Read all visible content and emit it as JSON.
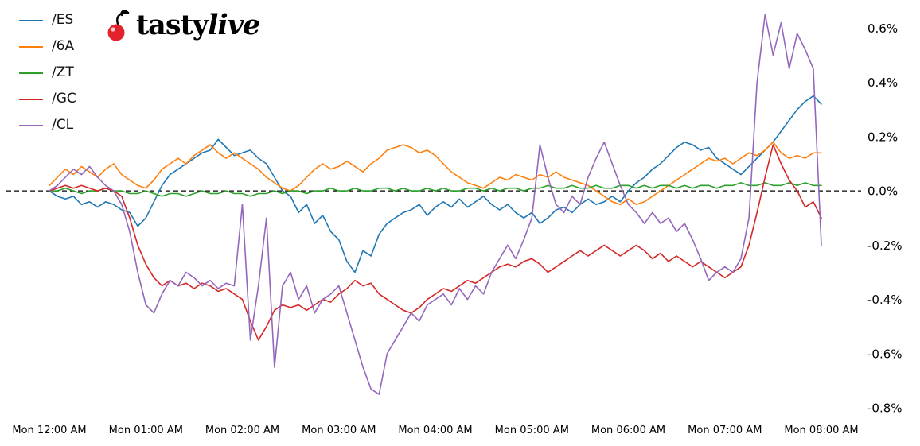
{
  "logo": {
    "brand_part1": "tasty",
    "brand_part2": "live",
    "cherry_color": "#e3232c"
  },
  "chart_data": {
    "type": "line",
    "title": "",
    "xlabel": "",
    "ylabel": "",
    "grid": false,
    "legend_position": "upper-left",
    "zero_line": {
      "value": 0.0,
      "style": "dashed",
      "color": "#000000"
    },
    "x_axis": {
      "unit": "minutes-since-Mon-12:00-AM",
      "start_min": 0,
      "step_min": 5,
      "tick_positions_min": [
        0,
        60,
        120,
        180,
        240,
        300,
        360,
        420,
        480
      ],
      "tick_labels": [
        "Mon 12:00 AM",
        "Mon 01:00 AM",
        "Mon 02:00 AM",
        "Mon 03:00 AM",
        "Mon 04:00 AM",
        "Mon 05:00 AM",
        "Mon 06:00 AM",
        "Mon 07:00 AM",
        "Mon 08:00 AM"
      ]
    },
    "y_axis": {
      "side": "right",
      "range": [
        -0.82,
        0.68
      ],
      "tick_values": [
        0.6,
        0.4,
        0.2,
        0.0,
        -0.2,
        -0.4,
        -0.6,
        -0.8
      ],
      "tick_labels": [
        "0.6%",
        "0.4%",
        "0.2%",
        "0.0%",
        "-0.2%",
        "-0.4%",
        "-0.6%",
        "-0.8%"
      ]
    },
    "series": [
      {
        "name": "/ES",
        "color": "#1f77b4",
        "values": [
          0.0,
          -0.02,
          -0.03,
          -0.02,
          -0.05,
          -0.04,
          -0.06,
          -0.04,
          -0.05,
          -0.07,
          -0.08,
          -0.13,
          -0.1,
          -0.04,
          0.02,
          0.06,
          0.08,
          0.1,
          0.12,
          0.14,
          0.15,
          0.19,
          0.16,
          0.13,
          0.14,
          0.15,
          0.12,
          0.1,
          0.05,
          0.0,
          -0.02,
          -0.08,
          -0.05,
          -0.12,
          -0.09,
          -0.15,
          -0.18,
          -0.26,
          -0.3,
          -0.22,
          -0.24,
          -0.16,
          -0.12,
          -0.1,
          -0.08,
          -0.07,
          -0.05,
          -0.09,
          -0.06,
          -0.04,
          -0.06,
          -0.03,
          -0.06,
          -0.04,
          -0.02,
          -0.05,
          -0.07,
          -0.05,
          -0.08,
          -0.1,
          -0.08,
          -0.12,
          -0.1,
          -0.07,
          -0.06,
          -0.08,
          -0.05,
          -0.03,
          -0.05,
          -0.04,
          -0.02,
          -0.04,
          0.0,
          0.03,
          0.05,
          0.08,
          0.1,
          0.13,
          0.16,
          0.18,
          0.17,
          0.15,
          0.16,
          0.12,
          0.1,
          0.08,
          0.06,
          0.09,
          0.12,
          0.15,
          0.18,
          0.22,
          0.26,
          0.3,
          0.33,
          0.35,
          0.32
        ]
      },
      {
        "name": "/6A",
        "color": "#ff7f0e",
        "values": [
          0.02,
          0.05,
          0.08,
          0.06,
          0.09,
          0.07,
          0.05,
          0.08,
          0.1,
          0.06,
          0.04,
          0.02,
          0.01,
          0.04,
          0.08,
          0.1,
          0.12,
          0.1,
          0.13,
          0.15,
          0.17,
          0.14,
          0.12,
          0.14,
          0.12,
          0.1,
          0.08,
          0.05,
          0.03,
          0.01,
          0.0,
          0.02,
          0.05,
          0.08,
          0.1,
          0.08,
          0.09,
          0.11,
          0.09,
          0.07,
          0.1,
          0.12,
          0.15,
          0.16,
          0.17,
          0.16,
          0.14,
          0.15,
          0.13,
          0.1,
          0.07,
          0.05,
          0.03,
          0.02,
          0.01,
          0.03,
          0.05,
          0.04,
          0.06,
          0.05,
          0.04,
          0.06,
          0.05,
          0.07,
          0.05,
          0.04,
          0.03,
          0.02,
          0.0,
          -0.02,
          -0.04,
          -0.05,
          -0.03,
          -0.05,
          -0.04,
          -0.02,
          0.0,
          0.02,
          0.04,
          0.06,
          0.08,
          0.1,
          0.12,
          0.11,
          0.12,
          0.1,
          0.12,
          0.14,
          0.13,
          0.15,
          0.18,
          0.14,
          0.12,
          0.13,
          0.12,
          0.14,
          0.14
        ]
      },
      {
        "name": "/ZT",
        "color": "#2ca02c",
        "values": [
          0.0,
          0.0,
          0.01,
          0.0,
          -0.01,
          0.0,
          0.0,
          0.01,
          0.0,
          0.0,
          -0.01,
          -0.01,
          0.0,
          -0.01,
          -0.02,
          -0.01,
          -0.01,
          -0.02,
          -0.01,
          0.0,
          -0.01,
          -0.01,
          0.0,
          -0.01,
          -0.01,
          -0.02,
          -0.01,
          -0.01,
          0.0,
          -0.01,
          0.0,
          0.0,
          -0.01,
          0.0,
          0.0,
          0.01,
          0.0,
          0.0,
          0.01,
          0.0,
          0.0,
          0.01,
          0.01,
          0.0,
          0.01,
          0.0,
          0.0,
          0.01,
          0.0,
          0.01,
          0.0,
          0.0,
          0.01,
          0.01,
          0.0,
          0.01,
          0.0,
          0.01,
          0.01,
          0.0,
          0.01,
          0.01,
          0.02,
          0.01,
          0.01,
          0.02,
          0.01,
          0.01,
          0.02,
          0.01,
          0.01,
          0.02,
          0.02,
          0.01,
          0.02,
          0.01,
          0.02,
          0.02,
          0.01,
          0.02,
          0.01,
          0.02,
          0.02,
          0.01,
          0.02,
          0.02,
          0.03,
          0.02,
          0.02,
          0.03,
          0.02,
          0.02,
          0.03,
          0.02,
          0.03,
          0.02,
          0.02
        ]
      },
      {
        "name": "/GC",
        "color": "#d62728",
        "values": [
          0.0,
          0.01,
          0.02,
          0.01,
          0.02,
          0.01,
          0.0,
          0.01,
          0.0,
          -0.02,
          -0.1,
          -0.2,
          -0.27,
          -0.32,
          -0.35,
          -0.33,
          -0.35,
          -0.34,
          -0.36,
          -0.34,
          -0.35,
          -0.37,
          -0.36,
          -0.38,
          -0.4,
          -0.48,
          -0.55,
          -0.5,
          -0.44,
          -0.42,
          -0.43,
          -0.42,
          -0.44,
          -0.42,
          -0.4,
          -0.41,
          -0.38,
          -0.36,
          -0.33,
          -0.35,
          -0.34,
          -0.38,
          -0.4,
          -0.42,
          -0.44,
          -0.45,
          -0.43,
          -0.4,
          -0.38,
          -0.36,
          -0.37,
          -0.35,
          -0.33,
          -0.34,
          -0.32,
          -0.3,
          -0.28,
          -0.27,
          -0.28,
          -0.26,
          -0.25,
          -0.27,
          -0.3,
          -0.28,
          -0.26,
          -0.24,
          -0.22,
          -0.24,
          -0.22,
          -0.2,
          -0.22,
          -0.24,
          -0.22,
          -0.2,
          -0.22,
          -0.25,
          -0.23,
          -0.26,
          -0.24,
          -0.26,
          -0.28,
          -0.26,
          -0.28,
          -0.3,
          -0.32,
          -0.3,
          -0.28,
          -0.2,
          -0.08,
          0.05,
          0.17,
          0.1,
          0.04,
          0.0,
          -0.06,
          -0.04,
          -0.1
        ]
      },
      {
        "name": "/CL",
        "color": "#9467bd",
        "values": [
          0.0,
          0.02,
          0.05,
          0.08,
          0.06,
          0.09,
          0.05,
          0.02,
          0.0,
          -0.05,
          -0.15,
          -0.3,
          -0.42,
          -0.45,
          -0.38,
          -0.33,
          -0.35,
          -0.3,
          -0.32,
          -0.35,
          -0.33,
          -0.36,
          -0.34,
          -0.35,
          -0.05,
          -0.55,
          -0.35,
          -0.1,
          -0.65,
          -0.35,
          -0.3,
          -0.4,
          -0.35,
          -0.45,
          -0.4,
          -0.38,
          -0.35,
          -0.45,
          -0.55,
          -0.65,
          -0.73,
          -0.75,
          -0.6,
          -0.55,
          -0.5,
          -0.45,
          -0.48,
          -0.42,
          -0.4,
          -0.38,
          -0.42,
          -0.36,
          -0.4,
          -0.35,
          -0.38,
          -0.3,
          -0.25,
          -0.2,
          -0.25,
          -0.18,
          -0.1,
          0.17,
          0.05,
          -0.05,
          -0.08,
          -0.02,
          -0.05,
          0.05,
          0.12,
          0.18,
          0.1,
          0.02,
          -0.05,
          -0.08,
          -0.12,
          -0.08,
          -0.12,
          -0.1,
          -0.15,
          -0.12,
          -0.18,
          -0.25,
          -0.33,
          -0.3,
          -0.28,
          -0.3,
          -0.25,
          -0.1,
          0.4,
          0.65,
          0.5,
          0.62,
          0.45,
          0.58,
          0.52,
          0.45,
          -0.2
        ]
      }
    ]
  }
}
